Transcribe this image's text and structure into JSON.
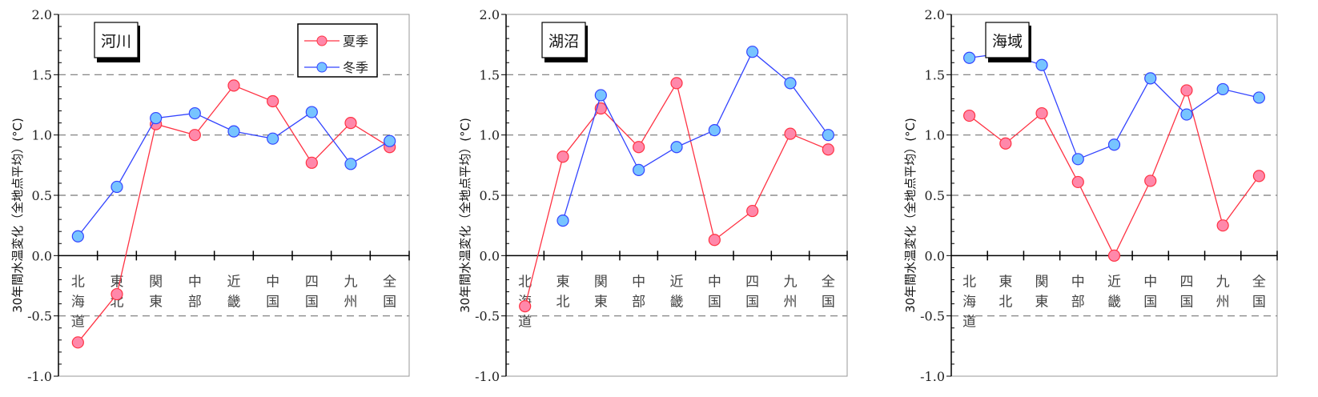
{
  "chart_data": [
    {
      "type": "line",
      "title": "河川",
      "ylabel": "30年間水温変化（全地点平均）(°C)",
      "ylim": [
        -1.0,
        2.0
      ],
      "yticks": [
        "2.0",
        "1.5",
        "1.0",
        "0.5",
        "0.0",
        "-0.5",
        "-1.0"
      ],
      "categories": [
        "北海道",
        "東北",
        "関東",
        "中部",
        "近畿",
        "中国",
        "四国",
        "九州",
        "全国"
      ],
      "grid": "dashed at 0.5 intervals",
      "legend": "top-right",
      "series": [
        {
          "name": "夏季",
          "color": "#ff3344",
          "fill": "#ff88aa",
          "values": [
            -0.72,
            -0.32,
            1.09,
            1.0,
            1.41,
            1.28,
            0.77,
            1.1,
            0.9
          ]
        },
        {
          "name": "冬季",
          "color": "#3344ff",
          "fill": "#77c4ff",
          "values": [
            0.16,
            0.57,
            1.14,
            1.18,
            1.03,
            0.97,
            1.19,
            0.76,
            0.95
          ]
        }
      ]
    },
    {
      "type": "line",
      "title": "湖沼",
      "ylabel": "30年間水温変化（全地点平均）(°C)",
      "ylim": [
        -1.0,
        2.0
      ],
      "yticks": [
        "2.0",
        "1.5",
        "1.0",
        "0.5",
        "0.0",
        "-0.5",
        "-1.0"
      ],
      "categories": [
        "北海道",
        "東北",
        "関東",
        "中部",
        "近畿",
        "中国",
        "四国",
        "九州",
        "全国"
      ],
      "series": [
        {
          "name": "夏季",
          "color": "#ff3344",
          "fill": "#ff88aa",
          "values": [
            -0.42,
            0.82,
            1.22,
            0.9,
            1.43,
            0.13,
            0.37,
            1.01,
            0.88
          ]
        },
        {
          "name": "冬季",
          "color": "#3344ff",
          "fill": "#77c4ff",
          "values": [
            null,
            0.29,
            1.33,
            0.71,
            0.9,
            1.04,
            1.69,
            1.43,
            1.0
          ]
        }
      ]
    },
    {
      "type": "line",
      "title": "海域",
      "ylabel": "30年間水温変化（全地点平均）(°C)",
      "ylim": [
        -1.0,
        2.0
      ],
      "yticks": [
        "2.0",
        "1.5",
        "1.0",
        "0.5",
        "0.0",
        "-0.5",
        "-1.0"
      ],
      "categories": [
        "北海道",
        "東北",
        "関東",
        "中部",
        "近畿",
        "中国",
        "四国",
        "九州",
        "全国"
      ],
      "series": [
        {
          "name": "夏季",
          "color": "#ff3344",
          "fill": "#ff88aa",
          "values": [
            1.16,
            0.93,
            1.18,
            0.61,
            0.0,
            0.62,
            1.37,
            0.25,
            0.66
          ]
        },
        {
          "name": "冬季",
          "color": "#3344ff",
          "fill": "#77c4ff",
          "values": [
            1.64,
            1.68,
            1.58,
            0.8,
            0.92,
            1.47,
            1.17,
            1.38,
            1.31
          ]
        }
      ]
    }
  ]
}
